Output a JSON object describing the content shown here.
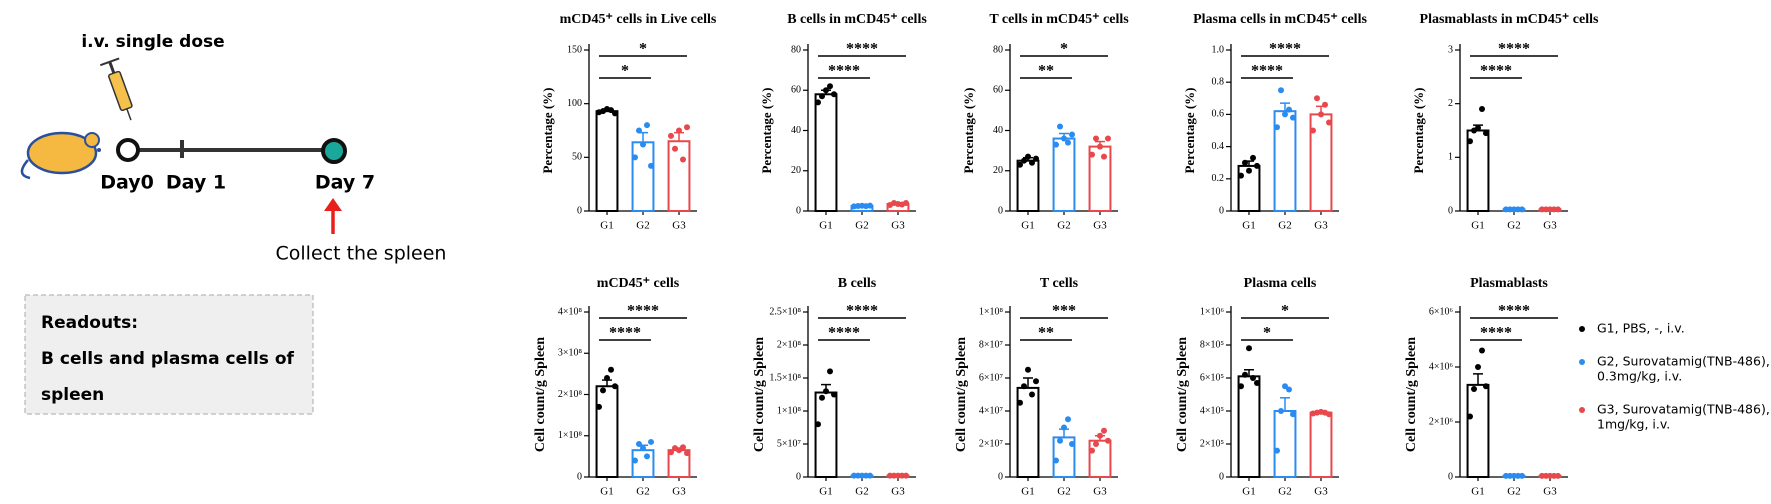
{
  "schematic": {
    "dose": "i.v.  single dose",
    "day0": "Day0",
    "day1": "Day 1",
    "day7": "Day 7",
    "collect": "Collect the spleen",
    "readouts_title": "Readouts:",
    "readouts_lines": [
      "B cells and plasma cells of",
      "spleen"
    ]
  },
  "legend": [
    {
      "label": [
        "G1, PBS, -, i.v."
      ],
      "color": "#000000"
    },
    {
      "label": [
        "G2, Surovatamig(TNB-486),",
        "0.3mg/kg, i.v."
      ],
      "color": "#2a8cf0"
    },
    {
      "label": [
        "G3, Surovatamig(TNB-486),",
        "1mg/kg, i.v."
      ],
      "color": "#e8474c"
    }
  ],
  "chart_data": [
    {
      "type": "bar",
      "title": "mCD45⁺ cells in Live cells",
      "y_label": "Percentage (%)",
      "categories": [
        "G1",
        "G2",
        "G3"
      ],
      "colors": [
        "#000000",
        "#2a8cf0",
        "#e8474c"
      ],
      "values": [
        93,
        64,
        65
      ],
      "errors": [
        2,
        9,
        8
      ],
      "points": [
        [
          92,
          93,
          95,
          94,
          91
        ],
        [
          50,
          75,
          62,
          80,
          42
        ],
        [
          70,
          58,
          75,
          48,
          78
        ]
      ],
      "ylim": [
        0,
        150
      ],
      "yticks": [
        0,
        50,
        100,
        150
      ],
      "significance": [
        {
          "pair": [
            0,
            1
          ],
          "label": "*"
        },
        {
          "pair": [
            0,
            2
          ],
          "label": "*"
        }
      ]
    },
    {
      "type": "bar",
      "title": "B cells in mCD45⁺ cells",
      "y_label": "Percentage (%)",
      "categories": [
        "G1",
        "G2",
        "G3"
      ],
      "colors": [
        "#000000",
        "#2a8cf0",
        "#e8474c"
      ],
      "values": [
        58,
        2.5,
        3.5
      ],
      "errors": [
        2,
        0.3,
        0.5
      ],
      "points": [
        [
          54,
          57,
          60,
          62,
          58
        ],
        [
          2.3,
          2.5,
          2.6,
          2.4,
          2.7
        ],
        [
          3,
          4,
          3.5,
          3.2,
          4
        ]
      ],
      "ylim": [
        0,
        80
      ],
      "yticks": [
        0,
        20,
        40,
        60,
        80
      ],
      "significance": [
        {
          "pair": [
            0,
            1
          ],
          "label": "****"
        },
        {
          "pair": [
            0,
            2
          ],
          "label": "****"
        }
      ]
    },
    {
      "type": "bar",
      "title": "T cells in mCD45⁺ cells",
      "y_label": "Percentage (%)",
      "categories": [
        "G1",
        "G2",
        "G3"
      ],
      "colors": [
        "#000000",
        "#2a8cf0",
        "#e8474c"
      ],
      "values": [
        25,
        36,
        32
      ],
      "errors": [
        1.5,
        2.5,
        2.5
      ],
      "points": [
        [
          23,
          25,
          27,
          24,
          26
        ],
        [
          33,
          42,
          36,
          34,
          38
        ],
        [
          28,
          36,
          32,
          27,
          36
        ]
      ],
      "ylim": [
        0,
        80
      ],
      "yticks": [
        0,
        20,
        40,
        60,
        80
      ],
      "significance": [
        {
          "pair": [
            0,
            1
          ],
          "label": "**"
        },
        {
          "pair": [
            0,
            2
          ],
          "label": "*"
        }
      ]
    },
    {
      "type": "bar",
      "title": "Plasma cells in mCD45⁺ cells",
      "y_label": "Percentage (%)",
      "categories": [
        "G1",
        "G2",
        "G3"
      ],
      "colors": [
        "#000000",
        "#2a8cf0",
        "#e8474c"
      ],
      "values": [
        0.28,
        0.62,
        0.6
      ],
      "errors": [
        0.03,
        0.05,
        0.05
      ],
      "points": [
        [
          0.22,
          0.3,
          0.25,
          0.33,
          0.28
        ],
        [
          0.52,
          0.75,
          0.6,
          0.63,
          0.58
        ],
        [
          0.5,
          0.7,
          0.6,
          0.66,
          0.55
        ]
      ],
      "ylim": [
        0,
        1
      ],
      "yticks": [
        0,
        0.2,
        0.4,
        0.6,
        0.8,
        {
          "value": 1,
          "label": "1.0"
        }
      ],
      "significance": [
        {
          "pair": [
            0,
            1
          ],
          "label": "****"
        },
        {
          "pair": [
            0,
            2
          ],
          "label": "****"
        }
      ]
    },
    {
      "type": "bar",
      "title": "Plasmablasts in mCD45⁺ cells",
      "y_label": "Percentage (%)",
      "categories": [
        "G1",
        "G2",
        "G3"
      ],
      "colors": [
        "#000000",
        "#2a8cf0",
        "#e8474c"
      ],
      "values": [
        1.5,
        0.03,
        0.03
      ],
      "errors": [
        0.1,
        0.005,
        0.005
      ],
      "points": [
        [
          1.3,
          1.5,
          1.55,
          1.9,
          1.45
        ],
        [
          0.03,
          0.03,
          0.03,
          0.03,
          0.03
        ],
        [
          0.03,
          0.03,
          0.03,
          0.03,
          0.03
        ]
      ],
      "ylim": [
        0,
        3
      ],
      "yticks": [
        0,
        1,
        2,
        3
      ],
      "significance": [
        {
          "pair": [
            0,
            1
          ],
          "label": "****"
        },
        {
          "pair": [
            0,
            2
          ],
          "label": "****"
        }
      ]
    },
    {
      "type": "bar",
      "title": "mCD45⁺ cells",
      "y_label": "Cell count/g Spleen",
      "categories": [
        "G1",
        "G2",
        "G3"
      ],
      "colors": [
        "#000000",
        "#2a8cf0",
        "#e8474c"
      ],
      "values": [
        220000000,
        65000000,
        65000000
      ],
      "errors": [
        15000000,
        12000000,
        5000000
      ],
      "points": [
        [
          170000000,
          210000000,
          240000000,
          260000000,
          220000000
        ],
        [
          40000000,
          80000000,
          70000000,
          50000000,
          85000000
        ],
        [
          60000000,
          70000000,
          65000000,
          72000000,
          58000000
        ]
      ],
      "ylim": [
        0,
        400000000
      ],
      "yticks": [
        0,
        {
          "value": 100000000,
          "label": "1×10⁸"
        },
        {
          "value": 200000000,
          "label": "2×10⁸"
        },
        {
          "value": 300000000,
          "label": "3×10⁸"
        },
        {
          "value": 400000000,
          "label": "4×10⁸"
        }
      ],
      "significance": [
        {
          "pair": [
            0,
            1
          ],
          "label": "****"
        },
        {
          "pair": [
            0,
            2
          ],
          "label": "****"
        }
      ]
    },
    {
      "type": "bar",
      "title": "B cells",
      "y_label": "Cell count/g Spleen",
      "categories": [
        "G1",
        "G2",
        "G3"
      ],
      "colors": [
        "#000000",
        "#2a8cf0",
        "#e8474c"
      ],
      "values": [
        128000000,
        2000000,
        2000000
      ],
      "errors": [
        12000000,
        300000,
        300000
      ],
      "points": [
        [
          80000000,
          120000000,
          130000000,
          160000000,
          125000000
        ],
        [
          2000000,
          2000000,
          2000000,
          2000000,
          2000000
        ],
        [
          2000000,
          2000000,
          2000000,
          2000000,
          2000000
        ]
      ],
      "ylim": [
        0,
        250000000
      ],
      "yticks": [
        0,
        {
          "value": 50000000,
          "label": "5×10⁷"
        },
        {
          "value": 100000000,
          "label": "1×10⁸"
        },
        {
          "value": 150000000,
          "label": "1.5×10⁸"
        },
        {
          "value": 200000000,
          "label": "2×10⁸"
        },
        {
          "value": 250000000,
          "label": "2.5×10⁸"
        }
      ],
      "significance": [
        {
          "pair": [
            0,
            1
          ],
          "label": "****"
        },
        {
          "pair": [
            0,
            2
          ],
          "label": "****"
        }
      ]
    },
    {
      "type": "bar",
      "title": "T cells",
      "y_label": "Cell count/g Spleen",
      "categories": [
        "G1",
        "G2",
        "G3"
      ],
      "colors": [
        "#000000",
        "#2a8cf0",
        "#e8474c"
      ],
      "values": [
        54000000,
        24000000,
        22000000
      ],
      "errors": [
        6000000,
        5000000,
        3000000
      ],
      "points": [
        [
          45000000,
          55000000,
          65000000,
          50000000,
          58000000
        ],
        [
          10000000,
          22000000,
          30000000,
          35000000,
          20000000
        ],
        [
          16000000,
          20000000,
          25000000,
          28000000,
          22000000
        ]
      ],
      "ylim": [
        0,
        100000000
      ],
      "yticks": [
        0,
        {
          "value": 20000000,
          "label": "2×10⁷"
        },
        {
          "value": 40000000,
          "label": "4×10⁷"
        },
        {
          "value": 60000000,
          "label": "6×10⁷"
        },
        {
          "value": 80000000,
          "label": "8×10⁷"
        },
        {
          "value": 100000000,
          "label": "1×10⁸"
        }
      ],
      "significance": [
        {
          "pair": [
            0,
            1
          ],
          "label": "**"
        },
        {
          "pair": [
            0,
            2
          ],
          "label": "***"
        }
      ]
    },
    {
      "type": "bar",
      "title": "Plasma cells",
      "y_label": "Cell count/g Spleen",
      "categories": [
        "G1",
        "G2",
        "G3"
      ],
      "colors": [
        "#000000",
        "#2a8cf0",
        "#e8474c"
      ],
      "values": [
        610000,
        400000,
        390000
      ],
      "errors": [
        40000,
        80000,
        5000
      ],
      "points": [
        [
          550000,
          620000,
          780000,
          600000,
          570000
        ],
        [
          160000,
          400000,
          550000,
          530000,
          380000
        ],
        [
          385000,
          390000,
          395000,
          390000,
          380000
        ]
      ],
      "ylim": [
        0,
        1000000
      ],
      "yticks": [
        0,
        {
          "value": 200000,
          "label": "2×10⁵"
        },
        {
          "value": 400000,
          "label": "4×10⁵"
        },
        {
          "value": 600000,
          "label": "6×10⁵"
        },
        {
          "value": 800000,
          "label": "8×10⁵"
        },
        {
          "value": 1000000,
          "label": "1×10⁶"
        }
      ],
      "significance": [
        {
          "pair": [
            0,
            1
          ],
          "label": "*"
        },
        {
          "pair": [
            0,
            2
          ],
          "label": "*"
        }
      ]
    },
    {
      "type": "bar",
      "title": "Plasmablasts",
      "y_label": "Cell count/g Spleen",
      "categories": [
        "G1",
        "G2",
        "G3"
      ],
      "colors": [
        "#000000",
        "#2a8cf0",
        "#e8474c"
      ],
      "values": [
        3350000,
        40000,
        40000
      ],
      "errors": [
        400000,
        5000,
        5000
      ],
      "points": [
        [
          2200000,
          3200000,
          4000000,
          4600000,
          3300000
        ],
        [
          40000,
          40000,
          40000,
          40000,
          40000
        ],
        [
          40000,
          40000,
          40000,
          40000,
          40000
        ]
      ],
      "ylim": [
        0,
        6000000
      ],
      "yticks": [
        0,
        {
          "value": 2000000,
          "label": "2×10⁶"
        },
        {
          "value": 4000000,
          "label": "4×10⁶"
        },
        {
          "value": 6000000,
          "label": "6×10⁶"
        }
      ],
      "significance": [
        {
          "pair": [
            0,
            1
          ],
          "label": "****"
        },
        {
          "pair": [
            0,
            2
          ],
          "label": "****"
        }
      ]
    }
  ]
}
